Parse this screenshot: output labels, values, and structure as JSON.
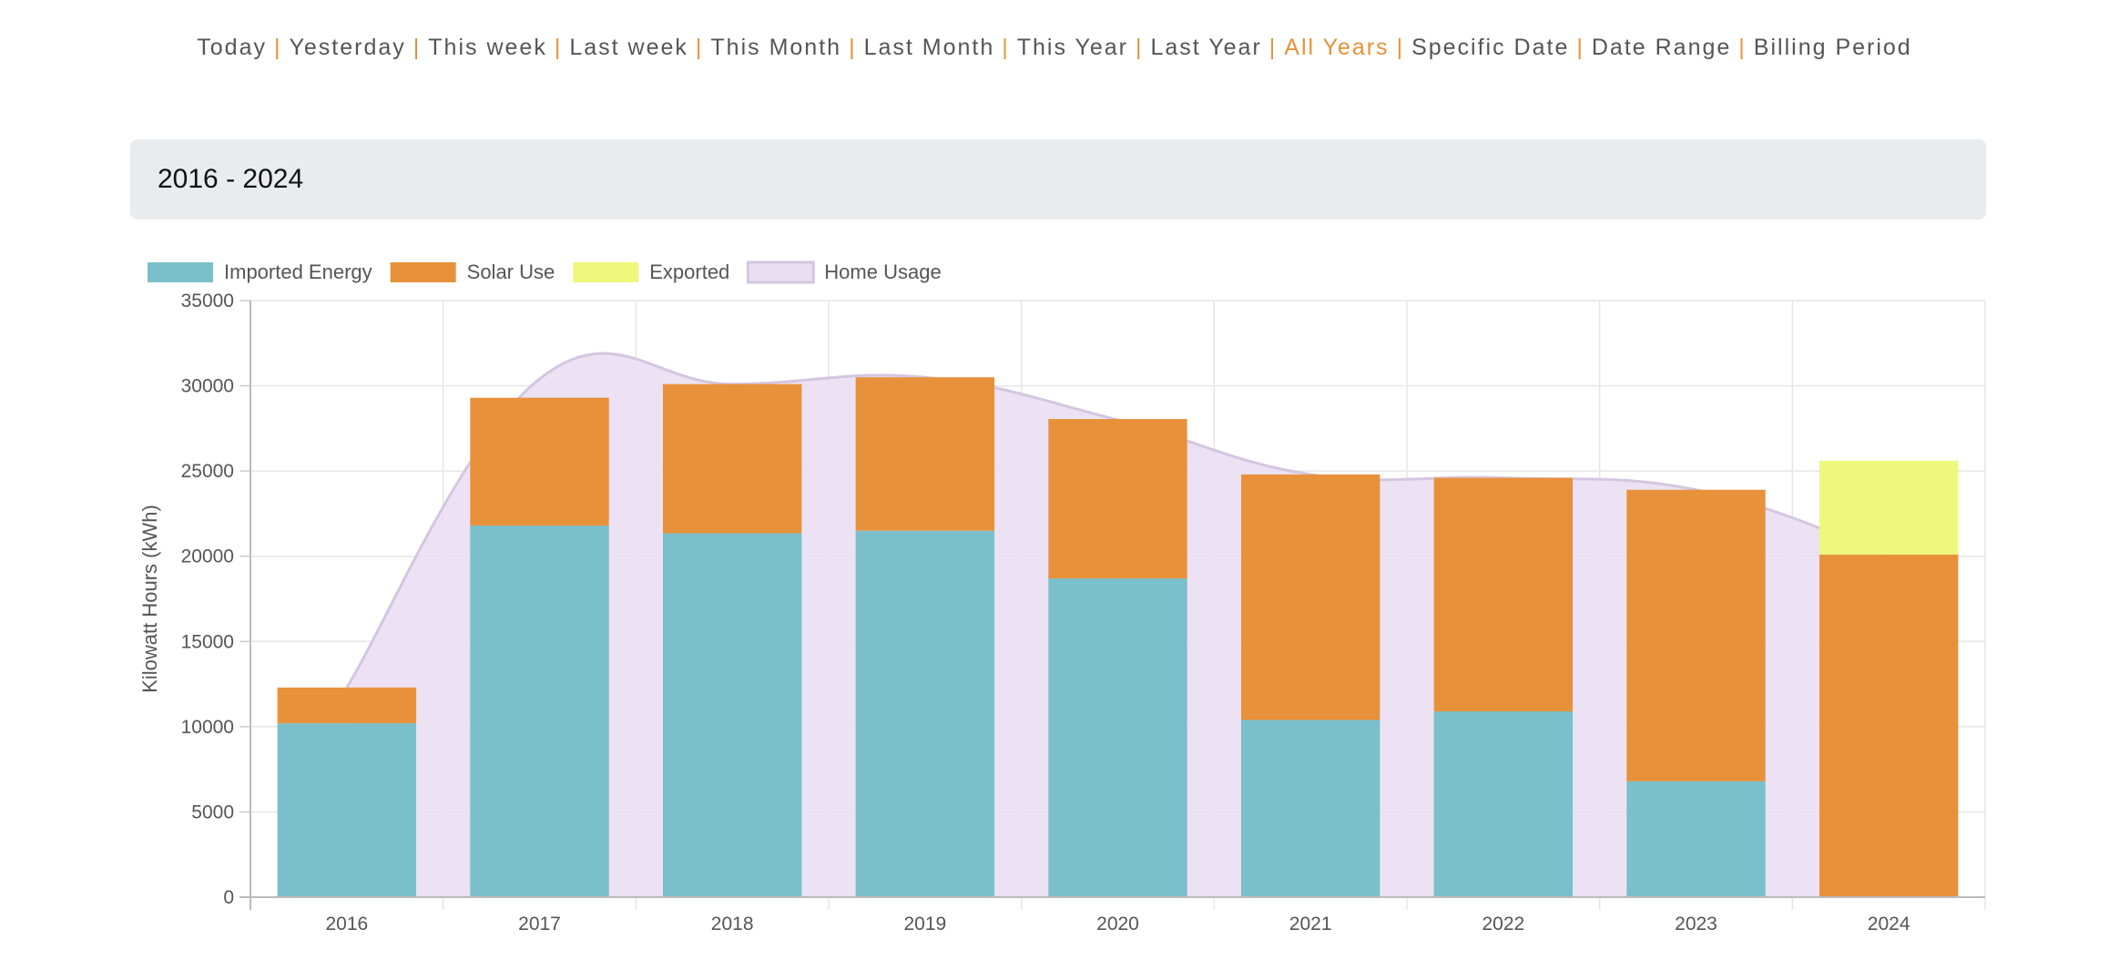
{
  "nav": {
    "items": [
      "Today",
      "Yesterday",
      "This week",
      "Last week",
      "This Month",
      "Last Month",
      "This Year",
      "Last Year",
      "All Years",
      "Specific Date",
      "Date Range",
      "Billing Period"
    ],
    "active": "All Years",
    "separator": "|"
  },
  "range_title": "2016 - 2024",
  "chart_data": {
    "type": "bar",
    "stacked": true,
    "categories": [
      "2016",
      "2017",
      "2018",
      "2019",
      "2020",
      "2021",
      "2022",
      "2023",
      "2024"
    ],
    "series": [
      {
        "name": "Imported Energy",
        "color": "#7bbfca",
        "values": [
          10200,
          21800,
          21350,
          21500,
          18700,
          10400,
          10900,
          6800,
          0
        ]
      },
      {
        "name": "Solar Use",
        "color": "#e8913b",
        "values": [
          2100,
          7500,
          8750,
          9000,
          9350,
          14400,
          13700,
          17100,
          20100
        ]
      },
      {
        "name": "Exported",
        "color": "#eff77d",
        "values": [
          0,
          0,
          0,
          0,
          0,
          0,
          0,
          0,
          5500
        ]
      }
    ],
    "area_series": {
      "name": "Home Usage",
      "fill": "#eadff2",
      "stroke": "#d4c6e0",
      "values": [
        12300,
        30400,
        30100,
        30500,
        28000,
        24800,
        24600,
        23900,
        20100
      ]
    },
    "ylabel": "Kilowatt Hours (kWh)",
    "ylim": [
      0,
      35000
    ],
    "yticks": [
      0,
      5000,
      10000,
      15000,
      20000,
      25000,
      30000,
      35000
    ],
    "grid": true,
    "legend": "top-left"
  }
}
